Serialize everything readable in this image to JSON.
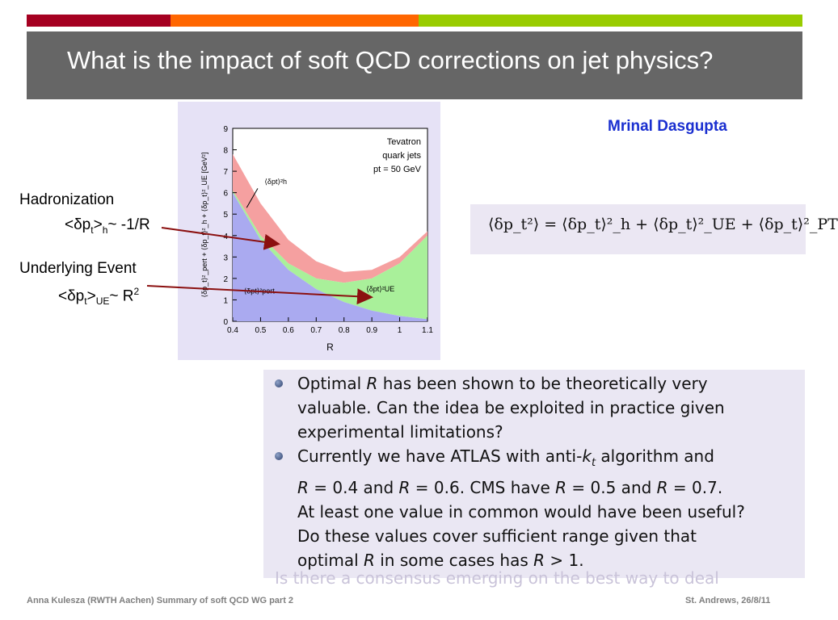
{
  "slide": {
    "title": "What is the impact of soft QCD corrections on jet physics?",
    "author": "Mrinal Dasgupta",
    "accent_colors": [
      "#a50021",
      "#ff6600",
      "#99cc00"
    ]
  },
  "annotations": {
    "hadronization": {
      "line1": "Hadronization",
      "pre": "<δp",
      "sub1": "t",
      "mid": ">",
      "sub2": "h",
      "post": "~ -1/R"
    },
    "underlying_event": {
      "line1": "Underlying Event",
      "pre": "<δp",
      "sub1": "t",
      "mid": ">",
      "sub2": "UE",
      "post": "~ R",
      "sup": "2"
    }
  },
  "plot": {
    "ylabel": "⟨δp_t⟩²_pert + ⟨δp_t⟩²_h + ⟨δp_t⟩²_UE [GeV²]",
    "xlabel": "R",
    "info_lines": [
      "Tevatron",
      "quark jets",
      "pt = 50 GeV"
    ],
    "label_h": "⟨δpt⟩²h",
    "label_ue": "⟨δpt⟩²UE",
    "label_pert": "⟨δpt⟩²pert",
    "x_ticks": [
      "0.4",
      "0.5",
      "0.6",
      "0.7",
      "0.8",
      "0.9",
      "1",
      "1.1"
    ],
    "y_ticks": [
      "0",
      "1",
      "2",
      "3",
      "4",
      "5",
      "6",
      "7",
      "8",
      "9"
    ],
    "colors": {
      "pert": "#aaaaf0",
      "ue": "#a9f09a",
      "h": "#f5a0a0",
      "arrow": "#8b1010"
    }
  },
  "chart_data": {
    "type": "area",
    "xlabel": "R",
    "ylabel": "⟨δp_t⟩²_pert + ⟨δp_t⟩²_h + ⟨δp_t⟩²_UE [GeV²]",
    "xlim": [
      0.4,
      1.1
    ],
    "ylim": [
      0,
      9
    ],
    "x": [
      0.4,
      0.5,
      0.6,
      0.7,
      0.8,
      0.9,
      1.0,
      1.1
    ],
    "series": [
      {
        "name": "⟨δpt⟩²pert",
        "values": [
          6.0,
          3.8,
          2.4,
          1.5,
          0.9,
          0.5,
          0.25,
          0.1
        ]
      },
      {
        "name": "⟨δpt⟩²UE",
        "values": [
          6.1,
          4.0,
          2.7,
          2.0,
          1.8,
          2.0,
          2.7,
          4.0
        ]
      },
      {
        "name": "⟨δpt⟩²h",
        "values": [
          7.8,
          5.5,
          3.8,
          2.8,
          2.3,
          2.4,
          3.0,
          4.2
        ]
      }
    ]
  },
  "formula": "⟨δp_t²⟩ = ⟨δp_t⟩²_h + ⟨δp_t⟩²_UE + ⟨δp_t⟩²_PT",
  "bullets": [
    [
      "Optimal ",
      "R",
      " has been shown to be theoretically very",
      "valuable. Can the idea be exploited in practice given",
      "experimental limitations?"
    ],
    [
      "Currently we have ATLAS with anti-",
      "k",
      "t",
      " algorithm and",
      "R",
      " = 0.4 and ",
      "R",
      " = 0.6. CMS have ",
      "R",
      " = 0.5 and ",
      "R",
      " = 0.7.",
      "At least one value in common would have been useful?",
      "Do these values cover sufficient range given that",
      "optimal ",
      "R",
      " in some cases has ",
      "R",
      " > 1."
    ]
  ],
  "ghost_line": "Is there a consensus emerging on the best way to deal",
  "footer": {
    "left": "Anna Kulesza (RWTH Aachen) Summary of soft QCD WG part 2",
    "right": "St. Andrews, 26/8/11"
  }
}
